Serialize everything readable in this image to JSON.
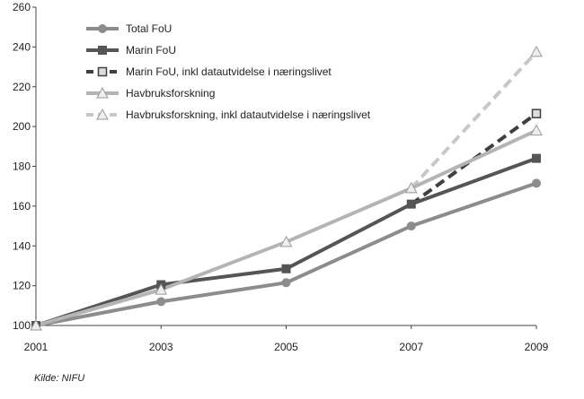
{
  "chart_data": {
    "type": "line",
    "x": [
      "2001",
      "2003",
      "2005",
      "2007",
      "2009"
    ],
    "ylim": [
      100,
      260
    ],
    "yticks": [
      100,
      120,
      140,
      160,
      180,
      200,
      220,
      240,
      260
    ],
    "grid": false,
    "legend_position": "top-left",
    "series": [
      {
        "name": "Total FoU",
        "values": [
          100,
          112,
          121.5,
          150,
          171.5
        ],
        "color": "#8c8c8c",
        "dash": "solid",
        "marker": "circle"
      },
      {
        "name": "Marin FoU",
        "values": [
          100,
          120.5,
          128.5,
          161,
          184
        ],
        "color": "#555555",
        "dash": "solid",
        "marker": "square"
      },
      {
        "name": "Marin FoU, inkl datautvidelse i næringslivet",
        "values": [
          null,
          null,
          null,
          161,
          206.5
        ],
        "color": "#3f3f3f",
        "dash": "dashed",
        "marker": "square-open"
      },
      {
        "name": "Havbruksforskning",
        "values": [
          100,
          118,
          142,
          169,
          198
        ],
        "color": "#b4b4b4",
        "dash": "solid",
        "marker": "triangle"
      },
      {
        "name": "Havbruksforskning, inkl datautvidelse i næringslivet",
        "values": [
          null,
          null,
          null,
          169,
          237.5
        ],
        "color": "#c8c8c8",
        "dash": "dashed",
        "marker": "triangle"
      }
    ]
  },
  "source_note": "Kilde: NIFU"
}
